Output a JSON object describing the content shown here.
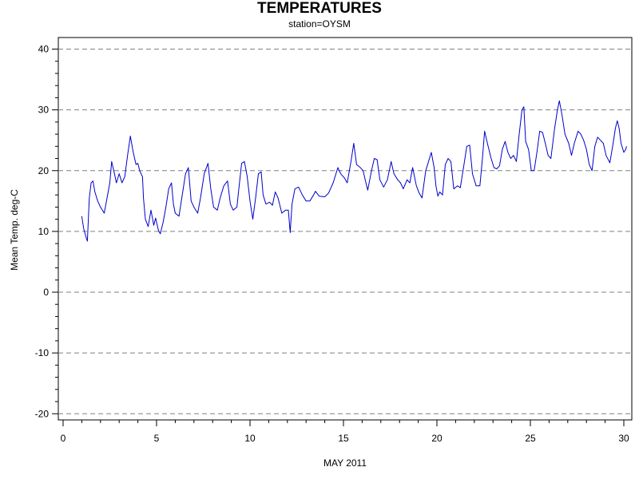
{
  "chart_data": {
    "type": "line",
    "title": "TEMPERATURES",
    "subtitle": "station=OYSM",
    "xlabel": "MAY 2011",
    "ylabel": "Mean Temp. deg-C",
    "xlim": [
      0,
      30.2
    ],
    "ylim": [
      -21,
      41
    ],
    "x_ticks": [
      0,
      5,
      10,
      15,
      20,
      25,
      30
    ],
    "y_ticks": [
      -20,
      -10,
      0,
      10,
      20,
      30,
      40
    ],
    "grid": "horizontal dashed",
    "series": [
      {
        "color": "#0000cc",
        "points": [
          [
            1.0,
            12.5
          ],
          [
            1.1,
            10.5
          ],
          [
            1.25,
            8.8
          ],
          [
            1.3,
            8.4
          ],
          [
            1.4,
            15.5
          ],
          [
            1.5,
            18.0
          ],
          [
            1.6,
            18.3
          ],
          [
            1.7,
            16.5
          ],
          [
            1.85,
            15.0
          ],
          [
            2.0,
            14.0
          ],
          [
            2.2,
            13.0
          ],
          [
            2.35,
            15.5
          ],
          [
            2.5,
            18.0
          ],
          [
            2.6,
            21.5
          ],
          [
            2.75,
            19.5
          ],
          [
            2.85,
            18.0
          ],
          [
            3.0,
            19.5
          ],
          [
            3.15,
            18.0
          ],
          [
            3.3,
            19.0
          ],
          [
            3.45,
            22.5
          ],
          [
            3.6,
            25.7
          ],
          [
            3.75,
            23.0
          ],
          [
            3.9,
            21.0
          ],
          [
            4.0,
            21.2
          ],
          [
            4.1,
            20.0
          ],
          [
            4.25,
            19.0
          ],
          [
            4.3,
            15.5
          ],
          [
            4.4,
            12.0
          ],
          [
            4.55,
            10.8
          ],
          [
            4.7,
            13.5
          ],
          [
            4.85,
            11.0
          ],
          [
            4.95,
            12.2
          ],
          [
            5.1,
            10.2
          ],
          [
            5.2,
            9.6
          ],
          [
            5.35,
            11.5
          ],
          [
            5.5,
            14.0
          ],
          [
            5.65,
            17.0
          ],
          [
            5.8,
            18.0
          ],
          [
            5.9,
            14.5
          ],
          [
            6.0,
            13.0
          ],
          [
            6.2,
            12.5
          ],
          [
            6.35,
            15.5
          ],
          [
            6.55,
            19.5
          ],
          [
            6.7,
            20.5
          ],
          [
            6.85,
            15.0
          ],
          [
            7.0,
            14.0
          ],
          [
            7.2,
            13.0
          ],
          [
            7.35,
            15.5
          ],
          [
            7.55,
            19.5
          ],
          [
            7.75,
            21.2
          ],
          [
            7.9,
            17.0
          ],
          [
            8.05,
            14.0
          ],
          [
            8.25,
            13.5
          ],
          [
            8.4,
            15.5
          ],
          [
            8.6,
            17.5
          ],
          [
            8.8,
            18.3
          ],
          [
            8.95,
            14.5
          ],
          [
            9.1,
            13.5
          ],
          [
            9.3,
            14.0
          ],
          [
            9.4,
            17.0
          ],
          [
            9.55,
            21.2
          ],
          [
            9.7,
            21.5
          ],
          [
            9.85,
            19.0
          ],
          [
            10.0,
            15.0
          ],
          [
            10.15,
            12.0
          ],
          [
            10.3,
            15.5
          ],
          [
            10.45,
            19.5
          ],
          [
            10.6,
            19.8
          ],
          [
            10.7,
            16.0
          ],
          [
            10.85,
            14.5
          ],
          [
            11.05,
            14.8
          ],
          [
            11.2,
            14.3
          ],
          [
            11.35,
            16.5
          ],
          [
            11.5,
            15.5
          ],
          [
            11.7,
            13.0
          ],
          [
            11.9,
            13.5
          ],
          [
            12.05,
            13.5
          ],
          [
            12.15,
            9.8
          ],
          [
            12.25,
            14.5
          ],
          [
            12.4,
            17.0
          ],
          [
            12.6,
            17.3
          ],
          [
            12.8,
            16.0
          ],
          [
            13.0,
            15.0
          ],
          [
            13.2,
            15.0
          ],
          [
            13.4,
            16.0
          ],
          [
            13.5,
            16.6
          ],
          [
            13.7,
            15.8
          ],
          [
            14.0,
            15.7
          ],
          [
            14.2,
            16.3
          ],
          [
            14.45,
            18.0
          ],
          [
            14.7,
            20.5
          ],
          [
            14.85,
            19.5
          ],
          [
            15.05,
            18.8
          ],
          [
            15.2,
            18.0
          ],
          [
            15.4,
            21.5
          ],
          [
            15.55,
            24.5
          ],
          [
            15.7,
            21.0
          ],
          [
            15.9,
            20.5
          ],
          [
            16.05,
            20.0
          ],
          [
            16.2,
            18.0
          ],
          [
            16.3,
            16.8
          ],
          [
            16.5,
            20.0
          ],
          [
            16.65,
            22.0
          ],
          [
            16.8,
            21.8
          ],
          [
            16.95,
            18.5
          ],
          [
            17.15,
            17.3
          ],
          [
            17.35,
            18.5
          ],
          [
            17.55,
            21.5
          ],
          [
            17.7,
            19.5
          ],
          [
            17.9,
            18.5
          ],
          [
            18.05,
            18.0
          ],
          [
            18.2,
            17.0
          ],
          [
            18.4,
            18.5
          ],
          [
            18.55,
            18.0
          ],
          [
            18.7,
            20.5
          ],
          [
            18.9,
            17.5
          ],
          [
            19.05,
            16.3
          ],
          [
            19.2,
            15.5
          ],
          [
            19.4,
            20.0
          ],
          [
            19.55,
            21.5
          ],
          [
            19.7,
            23.0
          ],
          [
            19.85,
            20.5
          ],
          [
            19.95,
            17.5
          ],
          [
            20.05,
            15.8
          ],
          [
            20.15,
            16.5
          ],
          [
            20.3,
            16.0
          ],
          [
            20.45,
            21.0
          ],
          [
            20.6,
            22.0
          ],
          [
            20.75,
            21.5
          ],
          [
            20.9,
            17.0
          ],
          [
            21.1,
            17.5
          ],
          [
            21.25,
            17.2
          ],
          [
            21.45,
            21.0
          ],
          [
            21.6,
            24.0
          ],
          [
            21.75,
            24.2
          ],
          [
            21.9,
            19.5
          ],
          [
            22.1,
            17.5
          ],
          [
            22.3,
            17.5
          ],
          [
            22.45,
            22.5
          ],
          [
            22.55,
            26.5
          ],
          [
            22.7,
            24.5
          ],
          [
            22.9,
            22.0
          ],
          [
            23.05,
            20.5
          ],
          [
            23.2,
            20.3
          ],
          [
            23.35,
            20.8
          ],
          [
            23.5,
            23.5
          ],
          [
            23.65,
            24.8
          ],
          [
            23.8,
            23.0
          ],
          [
            23.95,
            22.0
          ],
          [
            24.1,
            22.5
          ],
          [
            24.25,
            21.5
          ],
          [
            24.4,
            26.0
          ],
          [
            24.55,
            30.0
          ],
          [
            24.65,
            30.5
          ],
          [
            24.75,
            24.8
          ],
          [
            24.9,
            23.5
          ],
          [
            25.05,
            20.0
          ],
          [
            25.2,
            20.0
          ],
          [
            25.35,
            23.0
          ],
          [
            25.5,
            26.5
          ],
          [
            25.65,
            26.3
          ],
          [
            25.8,
            24.5
          ],
          [
            25.95,
            22.5
          ],
          [
            26.1,
            22.0
          ],
          [
            26.3,
            27.0
          ],
          [
            26.45,
            30.0
          ],
          [
            26.55,
            31.5
          ],
          [
            26.7,
            29.0
          ],
          [
            26.85,
            26.0
          ],
          [
            27.05,
            24.5
          ],
          [
            27.2,
            22.5
          ],
          [
            27.35,
            24.5
          ],
          [
            27.55,
            26.5
          ],
          [
            27.7,
            26.0
          ],
          [
            27.85,
            25.0
          ],
          [
            28.0,
            23.5
          ],
          [
            28.15,
            21.0
          ],
          [
            28.3,
            20.0
          ],
          [
            28.45,
            24.0
          ],
          [
            28.6,
            25.5
          ],
          [
            28.75,
            25.0
          ],
          [
            28.9,
            24.5
          ],
          [
            29.05,
            22.5
          ],
          [
            29.25,
            21.3
          ],
          [
            29.4,
            24.0
          ],
          [
            29.55,
            27.0
          ],
          [
            29.65,
            28.2
          ],
          [
            29.75,
            27.0
          ],
          [
            29.85,
            24.5
          ],
          [
            30.0,
            23.0
          ],
          [
            30.1,
            23.5
          ],
          [
            30.15,
            24.0
          ]
        ]
      }
    ]
  }
}
